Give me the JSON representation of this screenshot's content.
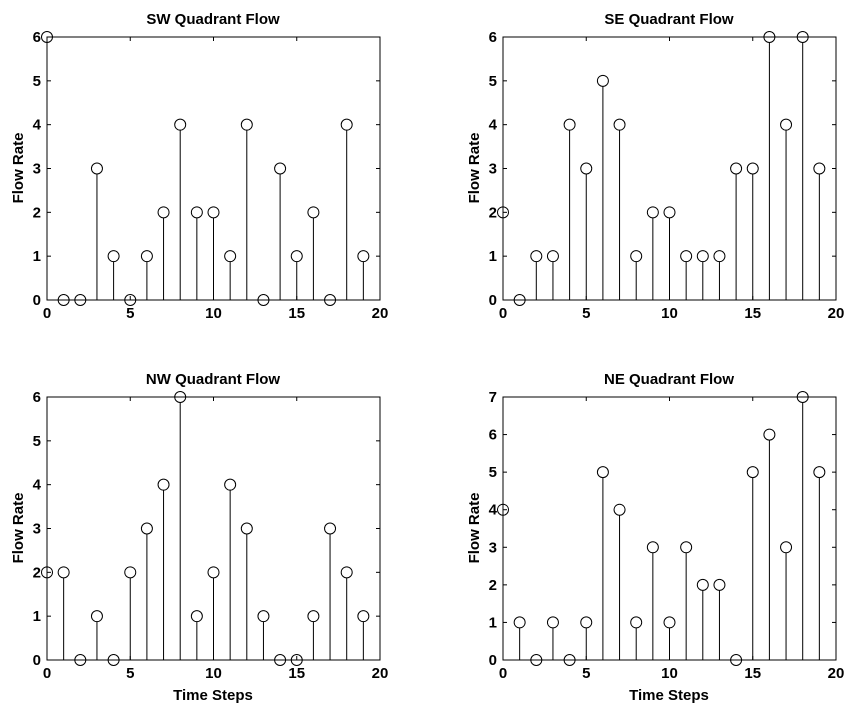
{
  "colors": {
    "line": "#000000",
    "background": "#ffffff"
  },
  "chart_data": [
    {
      "type": "stem",
      "title": "SW Quadrant Flow",
      "xlabel": "",
      "ylabel": "Flow Rate",
      "xlim": [
        0,
        20
      ],
      "ylim": [
        0,
        6
      ],
      "xticks": [
        0,
        5,
        10,
        15,
        20
      ],
      "yticks": [
        0,
        1,
        2,
        3,
        4,
        5,
        6
      ],
      "grid": false,
      "x": [
        0,
        1,
        2,
        3,
        4,
        5,
        6,
        7,
        8,
        9,
        10,
        11,
        12,
        13,
        14,
        15,
        16,
        17,
        18,
        19
      ],
      "values": [
        6,
        0,
        0,
        3,
        1,
        0,
        1,
        2,
        4,
        2,
        2,
        1,
        4,
        0,
        3,
        1,
        2,
        0,
        4,
        1
      ]
    },
    {
      "type": "stem",
      "title": "SE Quadrant Flow",
      "xlabel": "",
      "ylabel": "Flow Rate",
      "xlim": [
        0,
        20
      ],
      "ylim": [
        0,
        6
      ],
      "xticks": [
        0,
        5,
        10,
        15,
        20
      ],
      "yticks": [
        0,
        1,
        2,
        3,
        4,
        5,
        6
      ],
      "grid": false,
      "x": [
        0,
        1,
        2,
        3,
        4,
        5,
        6,
        7,
        8,
        9,
        10,
        11,
        12,
        13,
        14,
        15,
        16,
        17,
        18,
        19
      ],
      "values": [
        2,
        0,
        1,
        1,
        4,
        3,
        5,
        4,
        1,
        2,
        2,
        1,
        1,
        1,
        3,
        3,
        6,
        4,
        6,
        3
      ]
    },
    {
      "type": "stem",
      "title": "NW Quadrant Flow",
      "xlabel": "Time Steps",
      "ylabel": "Flow Rate",
      "xlim": [
        0,
        20
      ],
      "ylim": [
        0,
        6
      ],
      "xticks": [
        0,
        5,
        10,
        15,
        20
      ],
      "yticks": [
        0,
        1,
        2,
        3,
        4,
        5,
        6
      ],
      "grid": false,
      "x": [
        0,
        1,
        2,
        3,
        4,
        5,
        6,
        7,
        8,
        9,
        10,
        11,
        12,
        13,
        14,
        15,
        16,
        17,
        18,
        19
      ],
      "values": [
        2,
        2,
        0,
        1,
        0,
        2,
        3,
        4,
        6,
        1,
        2,
        4,
        3,
        1,
        0,
        0,
        1,
        3,
        2,
        1
      ]
    },
    {
      "type": "stem",
      "title": "NE Quadrant Flow",
      "xlabel": "Time Steps",
      "ylabel": "Flow Rate",
      "xlim": [
        0,
        20
      ],
      "ylim": [
        0,
        7
      ],
      "xticks": [
        0,
        5,
        10,
        15,
        20
      ],
      "yticks": [
        0,
        1,
        2,
        3,
        4,
        5,
        6,
        7
      ],
      "grid": false,
      "x": [
        0,
        1,
        2,
        3,
        4,
        5,
        6,
        7,
        8,
        9,
        10,
        11,
        12,
        13,
        14,
        15,
        16,
        17,
        18,
        19
      ],
      "values": [
        4,
        1,
        0,
        1,
        0,
        1,
        5,
        4,
        1,
        3,
        1,
        3,
        2,
        2,
        0,
        5,
        6,
        3,
        7,
        5
      ]
    }
  ]
}
